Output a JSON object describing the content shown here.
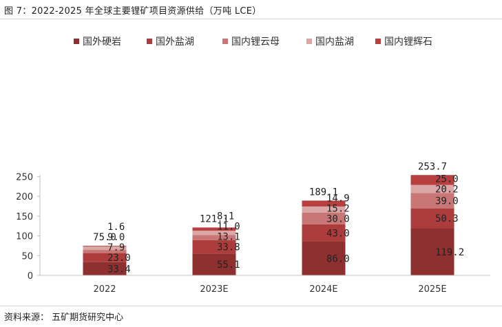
{
  "title": "图 7：2022-2025 年全球主要锂矿项目资源供给（万吨 LCE）",
  "source": "资料来源： 五矿期货研究中心",
  "chart_data": {
    "type": "bar",
    "stacked": true,
    "title": "图 7：2022-2025 年全球主要锂矿项目资源供给（万吨 LCE）",
    "xlabel": "",
    "ylabel": "",
    "categories": [
      "2022",
      "2023E",
      "2024E",
      "2025E"
    ],
    "ylim": [
      0,
      250
    ],
    "yticks": [
      0,
      50,
      100,
      150,
      200,
      250
    ],
    "grid": false,
    "legend_position": "top",
    "series": [
      {
        "name": "国外硬岩",
        "color": "#8e3030",
        "values": [
          33.4,
          55.1,
          86.0,
          119.2
        ],
        "labels": [
          "33.4",
          "55.1",
          "86.0",
          "119.2"
        ]
      },
      {
        "name": "国外盐湖",
        "color": "#ad3c3c",
        "values": [
          23.0,
          33.8,
          43.0,
          50.3
        ],
        "labels": [
          "23.0",
          "33.8",
          "43.0",
          "50.3"
        ]
      },
      {
        "name": "国内锂云母",
        "color": "#c97676",
        "values": [
          7.9,
          13.1,
          30.0,
          39.0
        ],
        "labels": [
          "7.9",
          "13.1",
          "30.0",
          "39.0"
        ]
      },
      {
        "name": "国内盐湖",
        "color": "#dba6a6",
        "values": [
          9.0,
          11.0,
          15.2,
          20.2
        ],
        "labels": [
          "9.0",
          "11.0",
          "15.2",
          "20.2"
        ]
      },
      {
        "name": "国内锂辉石",
        "color": "#b83f3f",
        "values": [
          1.6,
          8.1,
          14.9,
          25.0
        ],
        "labels": [
          "1.6",
          "8.1",
          "14.9",
          "25.0"
        ]
      }
    ],
    "totals": [
      "75.0",
      "121.1",
      "189.1",
      "253.7"
    ]
  }
}
